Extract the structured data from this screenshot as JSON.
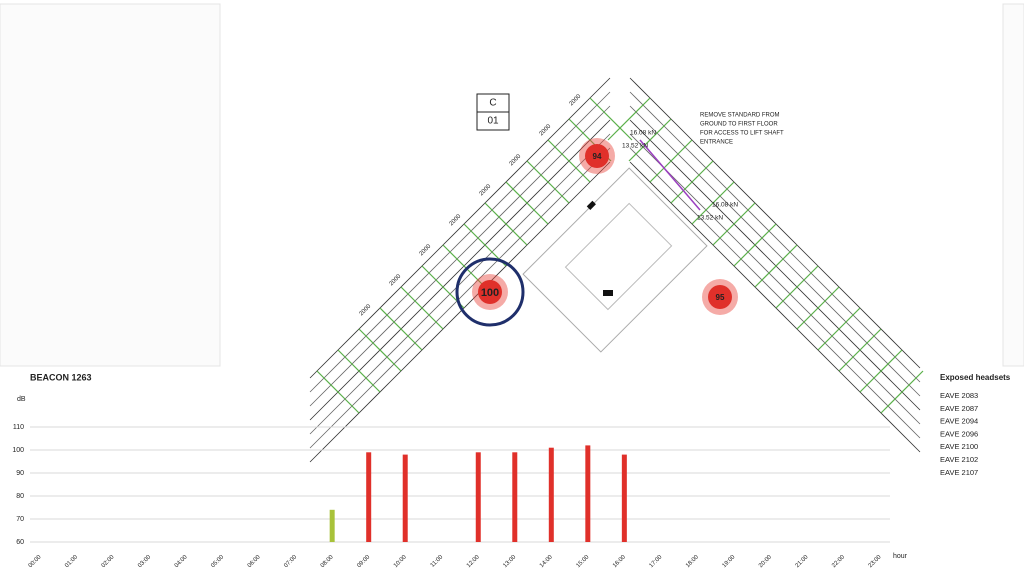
{
  "plan": {
    "section_tag": {
      "letter": "C",
      "number": "01"
    },
    "note": [
      "REMOVE STANDARD FROM",
      "GROUND TO FIRST FLOOR",
      "FOR ACCESS TO LIFT SHAFT",
      "ENTRANCE"
    ],
    "loads": [
      "16.08 kN",
      "13.52 kN",
      "16.08 kN",
      "13.52 kN"
    ],
    "dimensions": [
      "2000",
      "2000",
      "2000",
      "2000",
      "2000",
      "2000",
      "2000",
      "2000"
    ],
    "beacons": [
      {
        "value": 94
      },
      {
        "value": 100,
        "selected": true
      },
      {
        "value": 95
      }
    ]
  },
  "chart_data": {
    "type": "bar",
    "title": "BEACON 1263",
    "y_label": "dB",
    "x_label": "hour",
    "categories": [
      "00:00",
      "01:00",
      "02:00",
      "03:00",
      "04:00",
      "05:00",
      "06:00",
      "07:00",
      "08:00",
      "09:00",
      "10:00",
      "11:00",
      "12:00",
      "13:00",
      "14:00",
      "15:00",
      "16:00",
      "17:00",
      "18:00",
      "19:00",
      "20:00",
      "21:00",
      "22:00",
      "23:00"
    ],
    "values": [
      null,
      null,
      null,
      null,
      null,
      null,
      null,
      null,
      74,
      99,
      98,
      null,
      99,
      99,
      101,
      102,
      98,
      null,
      null,
      null,
      null,
      null,
      null,
      null
    ],
    "bar_colors": [
      null,
      null,
      null,
      null,
      null,
      null,
      null,
      null,
      "#a8c23a",
      "#e0302a",
      "#e0302a",
      null,
      "#e0302a",
      "#e0302a",
      "#e0302a",
      "#e0302a",
      "#e0302a",
      null,
      null,
      null,
      null,
      null,
      null,
      null
    ],
    "ylim": [
      60,
      110
    ],
    "yticks": [
      60,
      70,
      80,
      90,
      100,
      110
    ],
    "grid": true
  },
  "sidebar": {
    "title": "Exposed headsets",
    "items": [
      "EAVE 2083",
      "EAVE 2087",
      "EAVE 2094",
      "EAVE 2096",
      "EAVE 2100",
      "EAVE 2102",
      "EAVE 2107"
    ]
  }
}
